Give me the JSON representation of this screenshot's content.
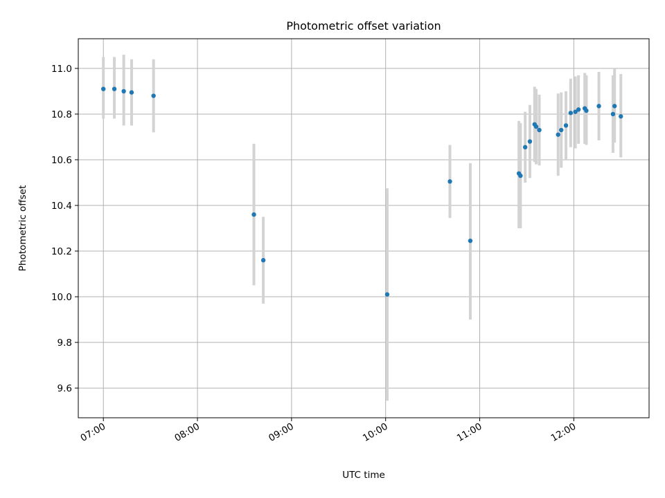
{
  "chart_data": {
    "type": "scatter",
    "title": "Photometric offset variation",
    "xlabel": "UTC time",
    "ylabel": "Photometric offset",
    "xlim": [
      "06:44",
      "12:48"
    ],
    "ylim": [
      9.47,
      11.13
    ],
    "xticks": [
      "07:00",
      "08:00",
      "09:00",
      "10:00",
      "11:00",
      "12:00"
    ],
    "yticks": [
      9.6,
      9.8,
      10.0,
      10.2,
      10.4,
      10.6,
      10.8,
      11.0
    ],
    "grid": true,
    "colors": {
      "points": "#1f77b4",
      "errorbars": "#d3d3d3",
      "grid": "#b0b0b0"
    },
    "points": [
      {
        "x": "07:00",
        "y": 10.91,
        "ylo": 10.78,
        "yhi": 11.05
      },
      {
        "x": "07:07",
        "y": 10.91,
        "ylo": 10.78,
        "yhi": 11.05
      },
      {
        "x": "07:13",
        "y": 10.9,
        "ylo": 10.75,
        "yhi": 11.06
      },
      {
        "x": "07:18",
        "y": 10.895,
        "ylo": 10.75,
        "yhi": 11.04
      },
      {
        "x": "07:32",
        "y": 10.88,
        "ylo": 10.72,
        "yhi": 11.04
      },
      {
        "x": "08:36",
        "y": 10.36,
        "ylo": 10.05,
        "yhi": 10.67
      },
      {
        "x": "08:42",
        "y": 10.16,
        "ylo": 9.97,
        "yhi": 10.35
      },
      {
        "x": "10:01",
        "y": 10.01,
        "ylo": 9.545,
        "yhi": 10.475
      },
      {
        "x": "10:41",
        "y": 10.505,
        "ylo": 10.345,
        "yhi": 10.665
      },
      {
        "x": "10:54",
        "y": 10.245,
        "ylo": 9.9,
        "yhi": 10.585
      },
      {
        "x": "11:25",
        "y": 10.54,
        "ylo": 10.3,
        "yhi": 10.77
      },
      {
        "x": "11:26",
        "y": 10.53,
        "ylo": 10.3,
        "yhi": 10.76
      },
      {
        "x": "11:29",
        "y": 10.655,
        "ylo": 10.5,
        "yhi": 10.81
      },
      {
        "x": "11:32",
        "y": 10.68,
        "ylo": 10.52,
        "yhi": 10.84
      },
      {
        "x": "11:35",
        "y": 10.755,
        "ylo": 10.59,
        "yhi": 10.92
      },
      {
        "x": "11:36",
        "y": 10.745,
        "ylo": 10.58,
        "yhi": 10.91
      },
      {
        "x": "11:38",
        "y": 10.73,
        "ylo": 10.575,
        "yhi": 10.885
      },
      {
        "x": "11:50",
        "y": 10.71,
        "ylo": 10.53,
        "yhi": 10.89
      },
      {
        "x": "11:52",
        "y": 10.73,
        "ylo": 10.565,
        "yhi": 10.895
      },
      {
        "x": "11:55",
        "y": 10.75,
        "ylo": 10.6,
        "yhi": 10.9
      },
      {
        "x": "11:58",
        "y": 10.805,
        "ylo": 10.655,
        "yhi": 10.955
      },
      {
        "x": "12:01",
        "y": 10.81,
        "ylo": 10.65,
        "yhi": 10.965
      },
      {
        "x": "12:03",
        "y": 10.82,
        "ylo": 10.67,
        "yhi": 10.97
      },
      {
        "x": "12:07",
        "y": 10.825,
        "ylo": 10.67,
        "yhi": 10.98
      },
      {
        "x": "12:08",
        "y": 10.815,
        "ylo": 10.665,
        "yhi": 10.97
      },
      {
        "x": "12:16",
        "y": 10.835,
        "ylo": 10.685,
        "yhi": 10.985
      },
      {
        "x": "12:25",
        "y": 10.8,
        "ylo": 10.63,
        "yhi": 10.97
      },
      {
        "x": "12:26",
        "y": 10.835,
        "ylo": 10.675,
        "yhi": 11.0
      },
      {
        "x": "12:30",
        "y": 10.79,
        "ylo": 10.61,
        "yhi": 10.975
      }
    ]
  }
}
